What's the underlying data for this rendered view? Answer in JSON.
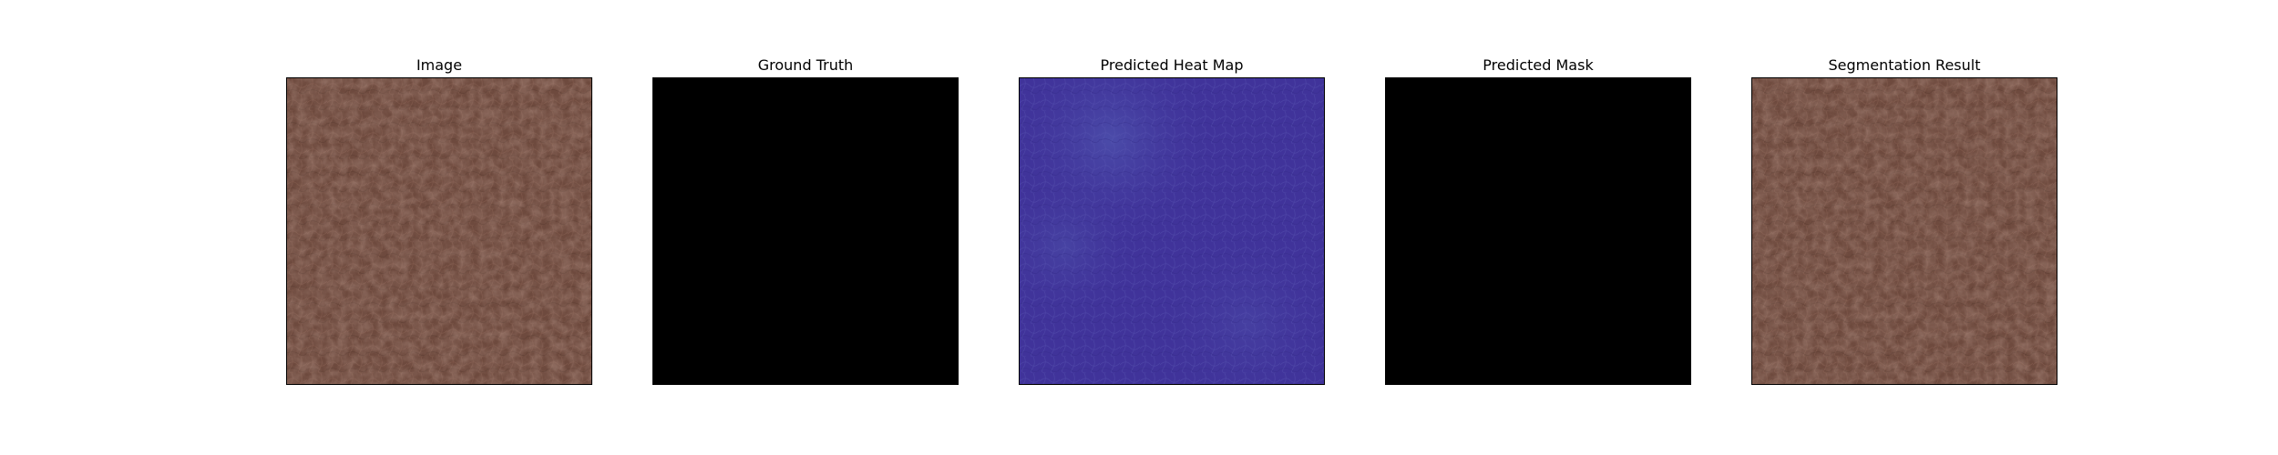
{
  "panels": [
    {
      "title": "Image",
      "content": "leather-texture",
      "base_color": "#6e4a3e"
    },
    {
      "title": "Ground Truth",
      "content": "black-mask",
      "base_color": "#000000"
    },
    {
      "title": "Predicted Heat Map",
      "content": "heatmap",
      "base_color": "#40339a"
    },
    {
      "title": "Predicted Mask",
      "content": "black-mask",
      "base_color": "#000000"
    },
    {
      "title": "Segmentation Result",
      "content": "leather-texture",
      "base_color": "#6e4a3e"
    }
  ]
}
